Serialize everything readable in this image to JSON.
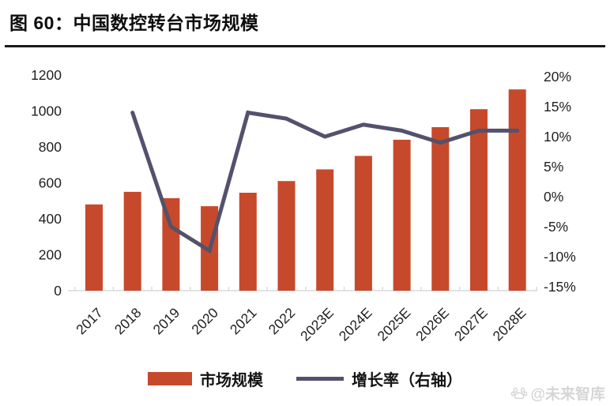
{
  "figure": {
    "title": "图 60：中国数控转台市场规模"
  },
  "chart_data": {
    "type": "bar",
    "subtype": "bar+line combo, dual axis",
    "title": "中国数控转台市场规模",
    "categories": [
      "2017",
      "2018",
      "2019",
      "2020",
      "2021",
      "2022",
      "2023E",
      "2024E",
      "2025E",
      "2026E",
      "2027E",
      "2028E"
    ],
    "series": [
      {
        "name": "市场规模",
        "type": "bar",
        "axis": "left",
        "color": "#c7492b",
        "values": [
          480,
          550,
          515,
          470,
          545,
          610,
          675,
          750,
          840,
          910,
          1010,
          1120
        ]
      },
      {
        "name": "增长率（右轴）",
        "type": "line",
        "axis": "right",
        "color": "#53516c",
        "values": [
          null,
          14,
          -5,
          -9,
          14,
          13,
          10,
          12,
          11,
          9,
          11,
          11
        ]
      }
    ],
    "left_axis": {
      "range": [
        0,
        1200
      ],
      "ticks": [
        0,
        200,
        400,
        600,
        800,
        1000,
        1200
      ],
      "tick_labels": [
        "0",
        "200",
        "400",
        "600",
        "800",
        "1000",
        "1200"
      ]
    },
    "right_axis": {
      "range": [
        -15,
        20
      ],
      "tick_values": [
        20,
        15,
        10,
        5,
        0,
        -5,
        -10,
        -15
      ],
      "tick_labels": [
        "20%",
        "15%",
        "10%",
        "5%",
        "0%",
        "-5%",
        "-10%",
        "-15%"
      ]
    },
    "grid": false,
    "legend_position": "bottom",
    "axis_line_color": "#d9d9d9"
  },
  "watermark": {
    "text": "@未来智库",
    "icon": "paw-icon"
  }
}
